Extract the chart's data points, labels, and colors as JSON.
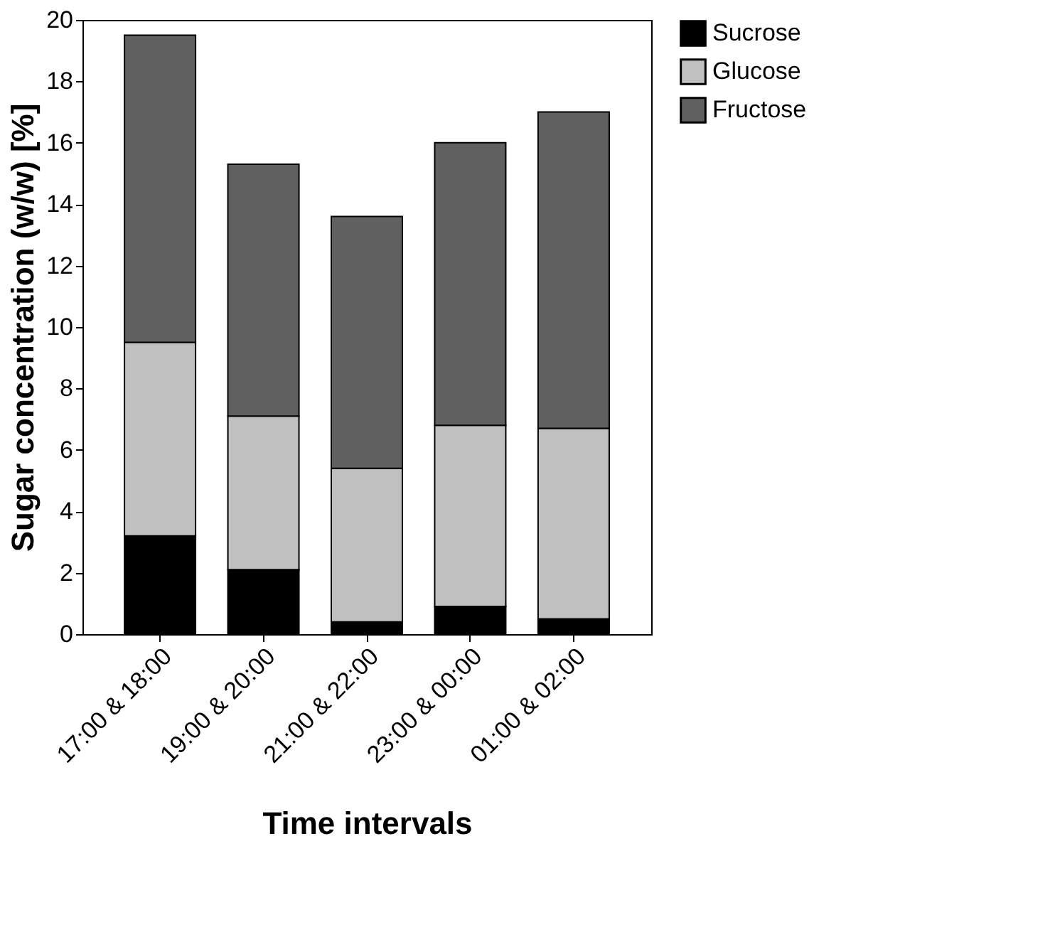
{
  "chart_data": {
    "type": "bar",
    "stacked": true,
    "xlabel": "Time intervals",
    "ylabel": "Sugar concentration (w/w) [%]",
    "categories": [
      "17:00 & 18:00",
      "19:00 & 20:00",
      "21:00 & 22:00",
      "23:00 & 00:00",
      "01:00 & 02:00"
    ],
    "series": [
      {
        "name": "Sucrose",
        "color": "#000000",
        "values": [
          3.2,
          2.1,
          0.4,
          0.9,
          0.5
        ]
      },
      {
        "name": "Glucose",
        "color": "#c0c0c0",
        "values": [
          6.3,
          5.0,
          5.0,
          5.9,
          6.2
        ]
      },
      {
        "name": "Fructose",
        "color": "#606060",
        "values": [
          10.0,
          8.2,
          8.2,
          9.2,
          10.3
        ]
      }
    ],
    "ylim": [
      0,
      20
    ],
    "yticks": [
      0,
      2,
      4,
      6,
      8,
      10,
      12,
      14,
      16,
      18,
      20
    ],
    "grid": false,
    "legend": "top right"
  }
}
